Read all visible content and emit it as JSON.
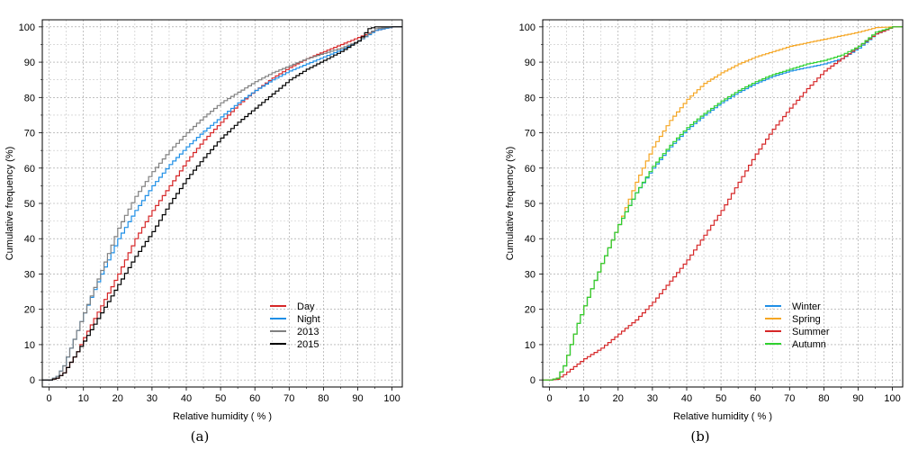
{
  "chart_data": [
    {
      "type": "line",
      "step": true,
      "caption": "(a)",
      "xlabel": "Relative humidity ( % )",
      "ylabel": "Cumulative frequency (%)",
      "xlim": [
        -2,
        103
      ],
      "ylim": [
        -2,
        102
      ],
      "xticks": [
        0,
        10,
        20,
        30,
        40,
        50,
        60,
        70,
        80,
        90,
        100
      ],
      "yticks": [
        0,
        10,
        20,
        30,
        40,
        50,
        60,
        70,
        80,
        90,
        100
      ],
      "grid": true,
      "legend_position": "bottom-right",
      "series": [
        {
          "name": "Day",
          "color": "#d62728",
          "x": [
            0,
            2,
            4,
            6,
            8,
            10,
            15,
            20,
            25,
            30,
            35,
            40,
            45,
            50,
            55,
            60,
            65,
            70,
            75,
            80,
            85,
            90,
            95,
            100
          ],
          "y": [
            0,
            0.5,
            2,
            5,
            8,
            12,
            21,
            30,
            40,
            48,
            55,
            62,
            68,
            73,
            78,
            82,
            85.5,
            88.5,
            91,
            93,
            95,
            97,
            99,
            100
          ]
        },
        {
          "name": "Night",
          "color": "#1f8fe6",
          "x": [
            0,
            2,
            4,
            6,
            8,
            10,
            15,
            20,
            25,
            30,
            35,
            40,
            45,
            50,
            55,
            60,
            65,
            70,
            75,
            80,
            85,
            90,
            95,
            100
          ],
          "y": [
            0,
            1,
            4,
            9,
            14,
            19,
            30,
            40,
            48,
            55,
            61,
            66,
            70.5,
            74.5,
            78.5,
            82,
            85,
            87.5,
            89.5,
            91.5,
            93.5,
            96,
            99,
            100
          ]
        },
        {
          "name": "2013",
          "color": "#808080",
          "x": [
            0,
            2,
            4,
            6,
            8,
            10,
            15,
            20,
            25,
            30,
            35,
            40,
            45,
            50,
            55,
            60,
            65,
            70,
            75,
            80,
            85,
            90,
            95,
            100
          ],
          "y": [
            0,
            1,
            4,
            9,
            14,
            19,
            31,
            43,
            52,
            59,
            65,
            70,
            74.5,
            78.5,
            81.5,
            84.5,
            87,
            89,
            91,
            92.5,
            94,
            96,
            99.5,
            100
          ]
        },
        {
          "name": "2015",
          "color": "#000000",
          "x": [
            0,
            2,
            4,
            6,
            8,
            10,
            15,
            20,
            25,
            30,
            35,
            40,
            45,
            50,
            55,
            60,
            65,
            70,
            75,
            80,
            85,
            90,
            93,
            95,
            100
          ],
          "y": [
            0,
            0.5,
            2,
            5,
            8,
            11,
            19,
            27,
            35,
            42,
            50,
            57,
            63,
            68.5,
            73,
            77,
            81,
            85,
            88,
            90.5,
            93,
            96,
            99.5,
            100,
            100
          ]
        }
      ]
    },
    {
      "type": "line",
      "step": true,
      "caption": "(b)",
      "xlabel": "Relative humidity ( % )",
      "ylabel": "Cumulative frequency (%)",
      "xlim": [
        -2,
        103
      ],
      "ylim": [
        -2,
        102
      ],
      "xticks": [
        0,
        10,
        20,
        30,
        40,
        50,
        60,
        70,
        80,
        90,
        100
      ],
      "yticks": [
        0,
        10,
        20,
        30,
        40,
        50,
        60,
        70,
        80,
        90,
        100
      ],
      "grid": true,
      "legend_position": "bottom-right",
      "series": [
        {
          "name": "Winter",
          "color": "#1f8fe6",
          "x": [
            0,
            2,
            4,
            6,
            8,
            10,
            15,
            20,
            25,
            30,
            35,
            40,
            45,
            50,
            55,
            60,
            65,
            70,
            75,
            80,
            85,
            90,
            95,
            100
          ],
          "y": [
            0,
            0.5,
            4,
            10,
            16,
            21,
            33,
            44,
            53,
            60,
            66,
            71,
            75,
            78.5,
            81.5,
            84,
            86,
            87.5,
            88.5,
            89.5,
            91,
            94,
            98,
            100
          ]
        },
        {
          "name": "Spring",
          "color": "#f5a623",
          "x": [
            0,
            2,
            4,
            6,
            8,
            10,
            15,
            20,
            25,
            30,
            35,
            40,
            45,
            50,
            55,
            60,
            65,
            70,
            75,
            80,
            85,
            90,
            95,
            100
          ],
          "y": [
            0,
            0.5,
            4,
            10,
            16,
            21,
            33,
            44,
            56,
            66,
            73.5,
            79.5,
            84,
            87,
            89.5,
            91.5,
            93,
            94.5,
            95.5,
            96.5,
            97.5,
            98.5,
            99.8,
            100
          ]
        },
        {
          "name": "Summer",
          "color": "#d62728",
          "x": [
            0,
            2,
            4,
            6,
            8,
            10,
            15,
            20,
            25,
            30,
            35,
            40,
            45,
            50,
            55,
            60,
            65,
            70,
            75,
            80,
            85,
            90,
            95,
            100
          ],
          "y": [
            0,
            0.2,
            1.5,
            3,
            4.5,
            6,
            9,
            13,
            17,
            22,
            28,
            34,
            41,
            48,
            56,
            64,
            71,
            77,
            82.5,
            87.5,
            91,
            94.5,
            98,
            100
          ]
        },
        {
          "name": "Autumn",
          "color": "#2fd12f",
          "x": [
            0,
            2,
            4,
            6,
            8,
            10,
            15,
            20,
            25,
            30,
            35,
            40,
            45,
            50,
            55,
            60,
            65,
            70,
            75,
            80,
            85,
            90,
            95,
            100
          ],
          "y": [
            0,
            0.5,
            4,
            10,
            16,
            21,
            33,
            44,
            53,
            60.5,
            66.5,
            71.5,
            75.5,
            79,
            82,
            84.5,
            86.5,
            88,
            89.5,
            90.5,
            92,
            94.5,
            98.5,
            100
          ]
        }
      ]
    }
  ]
}
